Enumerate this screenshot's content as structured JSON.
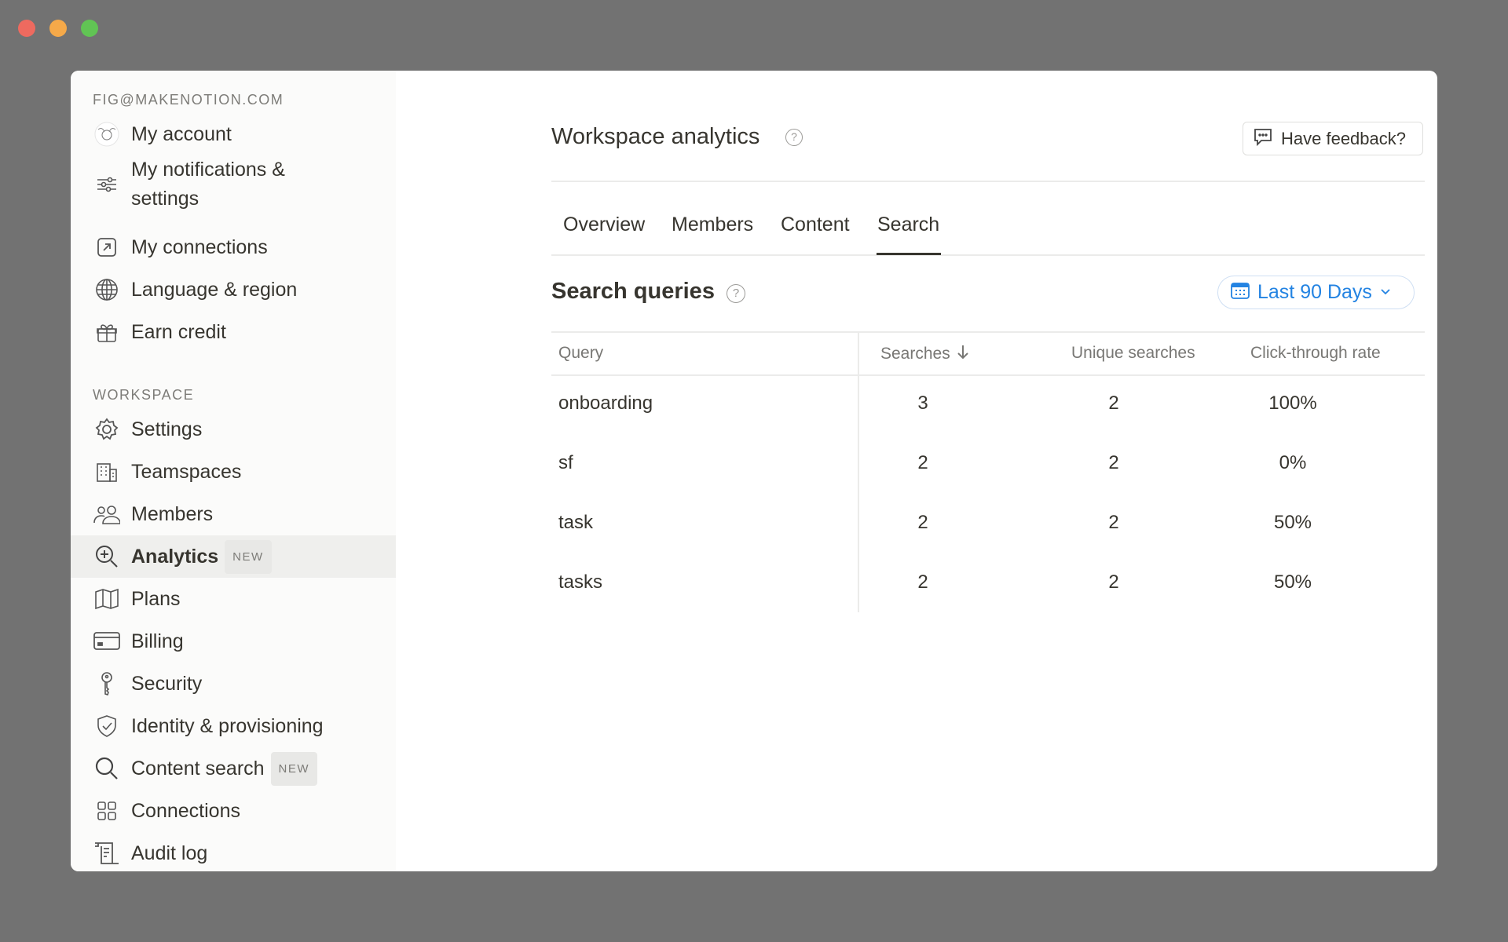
{
  "window": {
    "traffic_lights": [
      "#ee6a5f",
      "#f5a949",
      "#61c454"
    ]
  },
  "sidebar": {
    "account_label": "FIG@MAKENOTION.COM",
    "account_items": [
      {
        "label": "My account",
        "icon": "avatar"
      },
      {
        "label": "My notifications & settings",
        "icon": "sliders-icon"
      },
      {
        "label": "My connections",
        "icon": "arrow-up-right-square-icon"
      },
      {
        "label": "Language & region",
        "icon": "globe-icon"
      },
      {
        "label": "Earn credit",
        "icon": "gift-icon"
      }
    ],
    "workspace_label": "WORKSPACE",
    "workspace_items": [
      {
        "label": "Settings",
        "icon": "gear-icon"
      },
      {
        "label": "Teamspaces",
        "icon": "building-icon"
      },
      {
        "label": "Members",
        "icon": "people-icon"
      },
      {
        "label": "Analytics",
        "icon": "analytics-search-icon",
        "badge": "NEW",
        "active": true
      },
      {
        "label": "Plans",
        "icon": "map-icon"
      },
      {
        "label": "Billing",
        "icon": "credit-card-icon"
      },
      {
        "label": "Security",
        "icon": "key-icon"
      },
      {
        "label": "Identity & provisioning",
        "icon": "shield-check-icon"
      },
      {
        "label": "Content search",
        "icon": "search-icon",
        "badge": "NEW"
      },
      {
        "label": "Connections",
        "icon": "grid-icon"
      },
      {
        "label": "Audit log",
        "icon": "scroll-icon"
      }
    ]
  },
  "header": {
    "title": "Workspace analytics",
    "feedback_label": "Have feedback?"
  },
  "tabs": [
    {
      "label": "Overview"
    },
    {
      "label": "Members"
    },
    {
      "label": "Content"
    },
    {
      "label": "Search",
      "active": true
    }
  ],
  "section": {
    "title": "Search queries",
    "date_range": "Last 90 Days",
    "accent": "#2383e2"
  },
  "table": {
    "columns": [
      "Query",
      "Searches",
      "Unique searches",
      "Click-through rate"
    ],
    "sort_column": "Searches",
    "sort_direction": "descending",
    "rows": [
      {
        "query": "onboarding",
        "searches": "3",
        "unique": "2",
        "ctr": "100%"
      },
      {
        "query": "sf",
        "searches": "2",
        "unique": "2",
        "ctr": "0%"
      },
      {
        "query": "task",
        "searches": "2",
        "unique": "2",
        "ctr": "50%"
      },
      {
        "query": "tasks",
        "searches": "2",
        "unique": "2",
        "ctr": "50%"
      }
    ]
  }
}
